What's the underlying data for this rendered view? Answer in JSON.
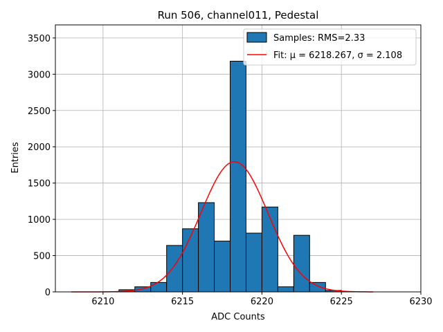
{
  "chart_data": {
    "type": "bar",
    "title": "Run 506, channel011, Pedestal",
    "xlabel": "ADC Counts",
    "ylabel": "Entries",
    "xlim": [
      6207,
      6230
    ],
    "ylim": [
      0,
      3680
    ],
    "xticks": [
      6210,
      6215,
      6220,
      6225,
      6230
    ],
    "yticks": [
      0,
      500,
      1000,
      1500,
      2000,
      2500,
      3000,
      3500
    ],
    "grid": true,
    "legend_position": "upper right",
    "bar_color": "#1f77b4",
    "fit_color": "#ff0000",
    "histogram": {
      "name": "Samples: RMS=2.33",
      "bin_width": 1,
      "bins": [
        {
          "x0": 6211,
          "value": 30
        },
        {
          "x0": 6212,
          "value": 70
        },
        {
          "x0": 6213,
          "value": 130
        },
        {
          "x0": 6214,
          "value": 640
        },
        {
          "x0": 6215,
          "value": 870
        },
        {
          "x0": 6216,
          "value": 1230
        },
        {
          "x0": 6217,
          "value": 700
        },
        {
          "x0": 6218,
          "value": 3180
        },
        {
          "x0": 6219,
          "value": 810
        },
        {
          "x0": 6220,
          "value": 1170
        },
        {
          "x0": 6221,
          "value": 70
        },
        {
          "x0": 6222,
          "value": 780
        },
        {
          "x0": 6223,
          "value": 130
        },
        {
          "x0": 6224,
          "value": 20
        }
      ]
    },
    "fit": {
      "name": "Fit: μ = 6218.267, σ = 2.108",
      "mu": 6218.267,
      "sigma": 2.108,
      "amplitude": 1795,
      "x_range": [
        6208,
        6227
      ]
    }
  }
}
